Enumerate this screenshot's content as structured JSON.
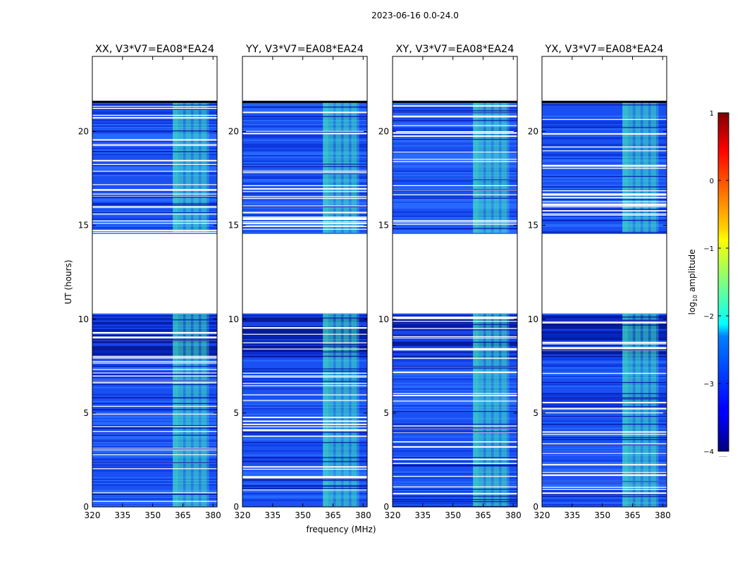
{
  "figure": {
    "suptitle": "2023-06-16 0.0-24.0"
  },
  "chart_data": {
    "type": "heatmap",
    "title": "2023-06-16 0.0-24.0",
    "xlabel": "frequency (MHz)",
    "ylabel": "UT (hours)",
    "xlim": [
      320,
      382
    ],
    "ylim": [
      0,
      24
    ],
    "x_ticks": [
      320,
      335,
      350,
      365,
      380
    ],
    "y_ticks": [
      0,
      5,
      10,
      15,
      20
    ],
    "panels": [
      {
        "title": "XX, V3*V7=EA08*EA24",
        "pol": "XX"
      },
      {
        "title": "YY, V3*V7=EA08*EA24",
        "pol": "YY"
      },
      {
        "title": "XY, V3*V7=EA08*EA24",
        "pol": "XY"
      },
      {
        "title": "YX, V3*V7=EA08*EA24",
        "pol": "YX"
      }
    ],
    "data_segments_ut_hours": [
      [
        0.0,
        10.3
      ],
      [
        14.6,
        21.6
      ]
    ],
    "empty_segments_ut_hours": [
      [
        10.3,
        14.6
      ],
      [
        21.6,
        24.0
      ]
    ],
    "rfi_band_mhz": [
      360,
      378
    ],
    "colorbar": {
      "label": "log",
      "label_sub": "10",
      "label_tail": " amplitude",
      "colormap": "jet",
      "range": [
        -4,
        1
      ],
      "ticks": [
        1,
        0,
        -1,
        -2,
        -3,
        -4
      ],
      "tick_labels": [
        "1",
        "0",
        "−1",
        "−2",
        "−3",
        "−4"
      ],
      "footer": "......"
    },
    "colors": {
      "background_level": "#1e5cff",
      "deep_level": "#0010a0",
      "rfi_level": "#40e8c0",
      "flagged": "#ffffff"
    }
  }
}
